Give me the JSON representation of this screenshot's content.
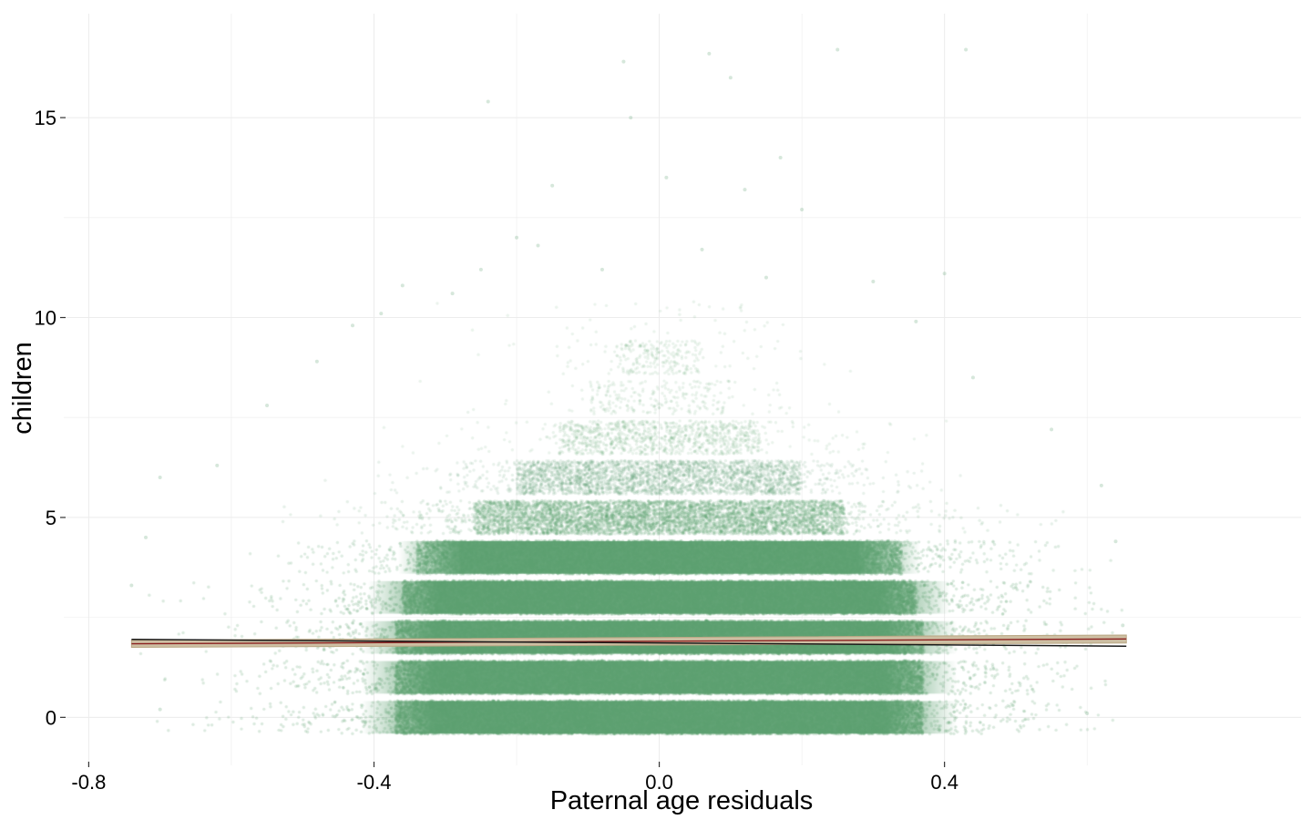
{
  "chart_data": {
    "type": "scatter",
    "xlabel": "Paternal age residuals",
    "ylabel": "children",
    "xlim": [
      -0.835,
      0.9
    ],
    "ylim": [
      -1.2,
      17.6
    ],
    "x_ticks": [
      {
        "value": -0.8,
        "label": "-0.8"
      },
      {
        "value": -0.4,
        "label": "-0.4"
      },
      {
        "value": 0.0,
        "label": "0.0"
      },
      {
        "value": 0.4,
        "label": "0.4"
      }
    ],
    "y_ticks": [
      {
        "value": 0,
        "label": "0"
      },
      {
        "value": 5,
        "label": "5"
      },
      {
        "value": 10,
        "label": "10"
      },
      {
        "value": 15,
        "label": "15"
      }
    ],
    "x_minor_gridlines": [
      -0.6,
      -0.2,
      0.2,
      0.6
    ],
    "y_minor_gridlines": [
      2.5,
      7.5,
      12.5
    ],
    "grid": true,
    "jitter": {
      "y_half_width": 0.42
    },
    "point_bands": [
      {
        "children": 0,
        "density": "very high",
        "x_core_half_width": 0.37,
        "x_sd": 0.17
      },
      {
        "children": 1,
        "density": "very high",
        "x_core_half_width": 0.37,
        "x_sd": 0.17
      },
      {
        "children": 2,
        "density": "very high",
        "x_core_half_width": 0.37,
        "x_sd": 0.17
      },
      {
        "children": 3,
        "density": "very high",
        "x_core_half_width": 0.36,
        "x_sd": 0.17
      },
      {
        "children": 4,
        "density": "high",
        "x_core_half_width": 0.34,
        "x_sd": 0.16
      },
      {
        "children": 5,
        "density": "medium",
        "x_core_half_width": 0.26,
        "x_sd": 0.15
      },
      {
        "children": 6,
        "density": "low",
        "x_core_half_width": 0.2,
        "x_sd": 0.14
      },
      {
        "children": 7,
        "density": "sparse",
        "x_core_half_width": 0.14,
        "x_sd": 0.13
      },
      {
        "children": 8,
        "density": "very sparse",
        "x_core_half_width": 0.1,
        "x_sd": 0.12
      },
      {
        "children": 9,
        "density": "very sparse",
        "x_core_half_width": 0.06,
        "x_sd": 0.11
      },
      {
        "children": 10,
        "density": "rare",
        "x_core_half_width": 0.0,
        "x_sd": 0.12
      }
    ],
    "outlier_points": [
      {
        "x": -0.24,
        "y": 15.4
      },
      {
        "x": -0.05,
        "y": 16.4
      },
      {
        "x": 0.07,
        "y": 16.6
      },
      {
        "x": 0.1,
        "y": 16.0
      },
      {
        "x": 0.25,
        "y": 16.7
      },
      {
        "x": 0.43,
        "y": 16.7
      },
      {
        "x": -0.04,
        "y": 15.0
      },
      {
        "x": 0.17,
        "y": 14.0
      },
      {
        "x": -0.15,
        "y": 13.3
      },
      {
        "x": 0.01,
        "y": 13.5
      },
      {
        "x": 0.12,
        "y": 13.2
      },
      {
        "x": -0.2,
        "y": 12.0
      },
      {
        "x": -0.17,
        "y": 11.8
      },
      {
        "x": 0.06,
        "y": 11.7
      },
      {
        "x": 0.2,
        "y": 12.7
      },
      {
        "x": -0.25,
        "y": 11.2
      },
      {
        "x": 0.4,
        "y": 11.1
      },
      {
        "x": -0.36,
        "y": 10.8
      },
      {
        "x": -0.29,
        "y": 10.6
      },
      {
        "x": -0.08,
        "y": 11.2
      },
      {
        "x": 0.15,
        "y": 11.0
      },
      {
        "x": 0.3,
        "y": 10.9
      },
      {
        "x": -0.43,
        "y": 9.8
      },
      {
        "x": -0.39,
        "y": 10.1
      },
      {
        "x": 0.36,
        "y": 9.9
      },
      {
        "x": -0.48,
        "y": 8.9
      },
      {
        "x": 0.44,
        "y": 8.5
      },
      {
        "x": -0.55,
        "y": 7.8
      },
      {
        "x": 0.55,
        "y": 7.2
      },
      {
        "x": -0.62,
        "y": 6.3
      },
      {
        "x": -0.7,
        "y": 6.0
      },
      {
        "x": 0.62,
        "y": 5.8
      },
      {
        "x": -0.72,
        "y": 4.5
      },
      {
        "x": 0.64,
        "y": 4.4
      },
      {
        "x": 0.65,
        "y": 2.3
      },
      {
        "x": -0.74,
        "y": 3.3
      },
      {
        "x": -0.7,
        "y": 0.2
      },
      {
        "x": 0.6,
        "y": 0.1
      }
    ],
    "trend_line": {
      "x": [
        -0.74,
        0.655
      ],
      "y": [
        1.95,
        1.78
      ]
    },
    "smooth_band": {
      "x": [
        -0.74,
        0.655
      ],
      "y_low": [
        1.75,
        1.86
      ],
      "y_high": [
        1.93,
        2.06
      ]
    },
    "colors": {
      "points": "#5b9f6f",
      "trend_line": "#1a1a1a",
      "smooth_band": "#cdbfa3",
      "smooth_band_edge": "#b9a683",
      "grid": "#ececec",
      "tick": "#333333"
    }
  }
}
